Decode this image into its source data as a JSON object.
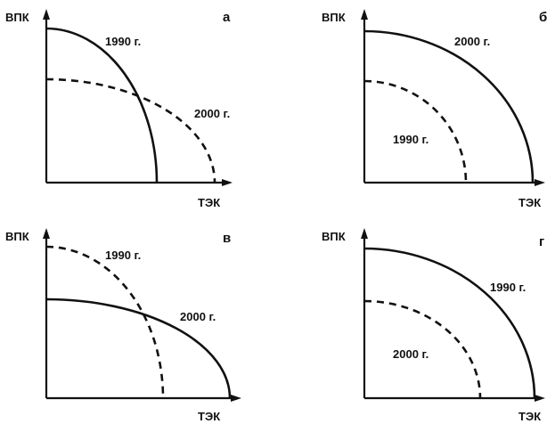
{
  "chart_data": [
    {
      "type": "line",
      "panel_label": "а",
      "xlabel": "ТЭК",
      "ylabel": "ВПК",
      "series": [
        {
          "name": "1990 г.",
          "line_style": "solid",
          "x_intercept": 0.97,
          "y_intercept": 1.0
        },
        {
          "name": "2000 г.",
          "line_style": "dashed",
          "x_intercept": 1.3,
          "y_intercept": 0.67
        }
      ]
    },
    {
      "type": "line",
      "panel_label": "б",
      "xlabel": "ТЭК",
      "ylabel": "ВПК",
      "series": [
        {
          "name": "2000 г.",
          "line_style": "solid",
          "x_intercept": 1.33,
          "y_intercept": 1.0
        },
        {
          "name": "1990 г.",
          "line_style": "dashed",
          "x_intercept": 0.83,
          "y_intercept": 0.67
        }
      ]
    },
    {
      "type": "line",
      "panel_label": "в",
      "xlabel": "ТЭК",
      "ylabel": "ВПК",
      "series": [
        {
          "name": "1990 г.",
          "line_style": "dashed",
          "x_intercept": 0.97,
          "y_intercept": 1.0
        },
        {
          "name": "2000 г.",
          "line_style": "solid",
          "x_intercept": 1.43,
          "y_intercept": 0.67
        }
      ]
    },
    {
      "type": "line",
      "panel_label": "г",
      "xlabel": "ТЭК",
      "ylabel": "ВПК",
      "series": [
        {
          "name": "1990 г.",
          "line_style": "solid",
          "x_intercept": 1.33,
          "y_intercept": 1.0
        },
        {
          "name": "2000 г.",
          "line_style": "dashed",
          "x_intercept": 0.9,
          "y_intercept": 0.67
        }
      ]
    }
  ]
}
